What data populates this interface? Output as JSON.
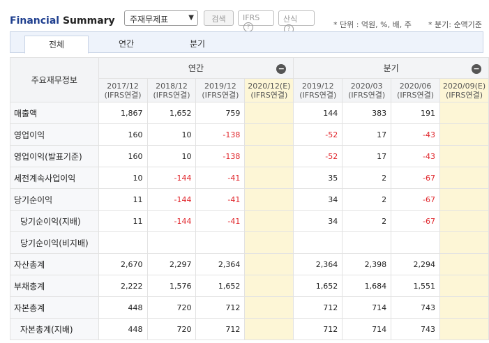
{
  "header": {
    "title_part1": "Financial",
    "title_part2": "Summary",
    "select_value": "주재무제표",
    "search_label": "검색",
    "ifrs_label": "IFRS",
    "calc_label": "산식",
    "help_icon_text": "?",
    "unit_note": "* 단위 : 억원, %, 배, 주",
    "period_note": "* 분기: 순액기준"
  },
  "tabs": [
    "전체",
    "연간",
    "분기"
  ],
  "table": {
    "corner_label": "주요재무정보",
    "group_annual": "연간",
    "group_quarter": "분기",
    "collapse_icon": "−",
    "columns": [
      {
        "period": "2017/12",
        "basis": "(IFRS연결)"
      },
      {
        "period": "2018/12",
        "basis": "(IFRS연결)"
      },
      {
        "period": "2019/12",
        "basis": "(IFRS연결)"
      },
      {
        "period": "2020/12(E)",
        "basis": "(IFRS연결)"
      },
      {
        "period": "2019/12",
        "basis": "(IFRS연결)"
      },
      {
        "period": "2020/03",
        "basis": "(IFRS연결)"
      },
      {
        "period": "2020/06",
        "basis": "(IFRS연결)"
      },
      {
        "period": "2020/09(E)",
        "basis": "(IFRS연결)"
      }
    ],
    "rows": [
      {
        "label": "매출액",
        "indent": false,
        "values": [
          "1,867",
          "1,652",
          "759",
          "",
          "144",
          "383",
          "191",
          ""
        ]
      },
      {
        "label": "영업이익",
        "indent": false,
        "values": [
          "160",
          "10",
          "-138",
          "",
          "-52",
          "17",
          "-43",
          ""
        ]
      },
      {
        "label": "영업이익(발표기준)",
        "indent": false,
        "values": [
          "160",
          "10",
          "-138",
          "",
          "-52",
          "17",
          "-43",
          ""
        ]
      },
      {
        "label": "세전계속사업이익",
        "indent": false,
        "values": [
          "10",
          "-144",
          "-41",
          "",
          "35",
          "2",
          "-67",
          ""
        ]
      },
      {
        "label": "당기순이익",
        "indent": false,
        "values": [
          "11",
          "-144",
          "-41",
          "",
          "34",
          "2",
          "-67",
          ""
        ]
      },
      {
        "label": "당기순이익(지배)",
        "indent": true,
        "values": [
          "11",
          "-144",
          "-41",
          "",
          "34",
          "2",
          "-67",
          ""
        ]
      },
      {
        "label": "당기순이익(비지배)",
        "indent": true,
        "values": [
          "",
          "",
          "",
          "",
          "",
          "",
          "",
          ""
        ]
      },
      {
        "label": "자산총계",
        "indent": false,
        "values": [
          "2,670",
          "2,297",
          "2,364",
          "",
          "2,364",
          "2,398",
          "2,294",
          ""
        ]
      },
      {
        "label": "부채총계",
        "indent": false,
        "values": [
          "2,222",
          "1,576",
          "1,652",
          "",
          "1,652",
          "1,684",
          "1,551",
          ""
        ]
      },
      {
        "label": "자본총계",
        "indent": false,
        "values": [
          "448",
          "720",
          "712",
          "",
          "712",
          "714",
          "743",
          ""
        ]
      },
      {
        "label": "자본총계(지배)",
        "indent": true,
        "values": [
          "448",
          "720",
          "712",
          "",
          "712",
          "714",
          "743",
          ""
        ]
      }
    ]
  }
}
